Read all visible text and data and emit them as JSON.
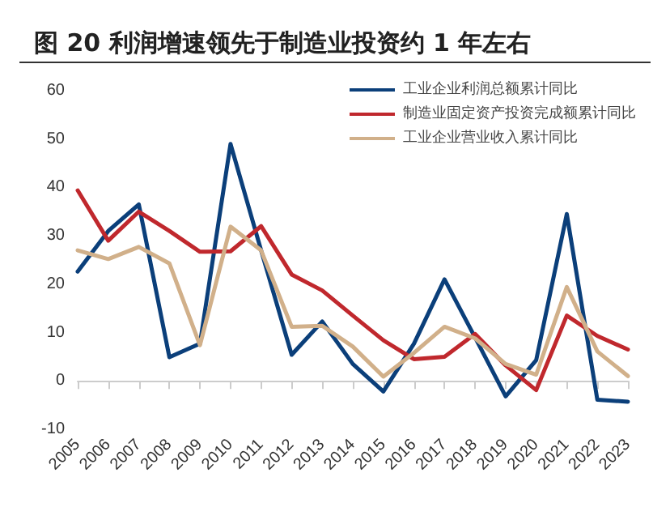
{
  "chart_data": {
    "type": "line",
    "title": "图 20 利润增速领先于制造业投资约 1 年左右",
    "categories": [
      "2005",
      "2006",
      "2007",
      "2008",
      "2009",
      "2010",
      "2011",
      "2012",
      "2013",
      "2014",
      "2015",
      "2016",
      "2017",
      "2018",
      "2019",
      "2020",
      "2021",
      "2022",
      "2023"
    ],
    "series": [
      {
        "name": "工业企业利润总额累计同比",
        "color": "#0b3f7a",
        "values": [
          22.6,
          31,
          36.5,
          4.9,
          7.7,
          49,
          27,
          5.4,
          12.3,
          3.5,
          -2.2,
          7.7,
          21,
          9,
          -3.2,
          4.3,
          34.5,
          -3.9,
          -4.3
        ]
      },
      {
        "name": "制造业固定资产投资完成额累计同比",
        "color": "#c0282d",
        "values": [
          39.4,
          29,
          35,
          31,
          26.7,
          26.8,
          32,
          22,
          18.7,
          13.5,
          8.4,
          4.5,
          5,
          9.7,
          3.2,
          -1.9,
          13.5,
          9.3,
          6.5
        ]
      },
      {
        "name": "工业企业营业收入累计同比",
        "color": "#d1b08a",
        "values": [
          27,
          25.2,
          27.7,
          24.3,
          7.4,
          31.9,
          27,
          11.2,
          11.4,
          7.1,
          0.9,
          5.8,
          11.2,
          8.8,
          3.5,
          1.3,
          19.4,
          6.1,
          1
        ]
      }
    ],
    "ylim": [
      -10,
      60
    ],
    "yticks": [
      -10,
      0,
      10,
      20,
      30,
      40,
      50,
      60
    ],
    "legend": "top right",
    "marker": "none",
    "line_style": "solid"
  }
}
